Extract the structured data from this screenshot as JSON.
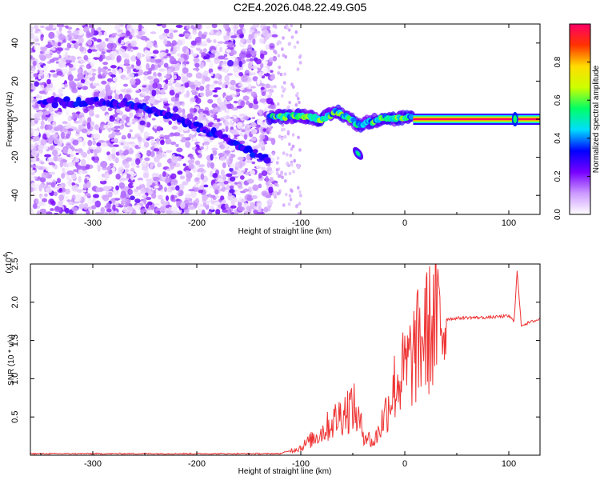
{
  "figure": {
    "title": "C2E4.2026.048.22.49.G05"
  },
  "chart_data": [
    {
      "id": "spectrogram",
      "type": "heatmap",
      "title": "C2E4.2026.048.22.49.G05",
      "xlabel": "Height of straight line (km)",
      "ylabel": "Frequency (Hz)",
      "xlim": [
        -360,
        130
      ],
      "ylim": [
        -50,
        50
      ],
      "xticks": [
        -300,
        -200,
        -100,
        0,
        100
      ],
      "yticks": [
        -40,
        -20,
        0,
        20,
        40
      ],
      "colorbar": {
        "label": "Normalized spectral amplitude",
        "range": [
          0,
          1
        ],
        "ticks": [
          "0.0",
          "0.2",
          "0.4",
          "0.6",
          "0.8"
        ],
        "colormap": [
          "#ffffff",
          "#cc99ff",
          "#7700ff",
          "#0000ff",
          "#00ddff",
          "#00ff66",
          "#ccff00",
          "#ffdd00",
          "#ff3300",
          "#ff0066"
        ]
      },
      "features": {
        "noise_region_x": [
          -360,
          -125
        ],
        "noise_amplitude": 0.2,
        "drifting_trace": [
          {
            "x": -350,
            "y": 9
          },
          {
            "x": -300,
            "y": 9
          },
          {
            "x": -260,
            "y": 8
          },
          {
            "x": -220,
            "y": 0
          },
          {
            "x": -180,
            "y": -8
          },
          {
            "x": -130,
            "y": -22
          }
        ],
        "carrier": {
          "points": [
            {
              "x": -130,
              "y": 1
            },
            {
              "x": -100,
              "y": 2
            },
            {
              "x": -80,
              "y": 0
            },
            {
              "x": -65,
              "y": 4
            },
            {
              "x": -55,
              "y": 1
            },
            {
              "x": -45,
              "y": -3
            },
            {
              "x": -30,
              "y": -1
            },
            {
              "x": -20,
              "y": 1
            },
            {
              "x": -10,
              "y": 0
            },
            {
              "x": 0,
              "y": 1
            },
            {
              "x": 10,
              "y": 0
            },
            {
              "x": 130,
              "y": 0
            }
          ],
          "stable_from_x": 8,
          "amplitude": 1.0
        },
        "spot": {
          "x": -45,
          "y": -18
        }
      }
    },
    {
      "id": "snr",
      "type": "line",
      "xlabel": "Height of straight line (km)",
      "ylabel": "SNR (10 * v/v)",
      "yscale_label": "(x10",
      "yscale_exponent": "4",
      "xlim": [
        -360,
        130
      ],
      "ylim": [
        0,
        2.5
      ],
      "xticks": [
        -300,
        -200,
        -100,
        0,
        100
      ],
      "yticks": [
        "0.5",
        "1.0",
        "1.5",
        "2.0",
        "2.5"
      ],
      "ytick_values": [
        0.5,
        1.0,
        1.5,
        2.0,
        2.5
      ],
      "color": "#ee3333",
      "series": [
        {
          "x": [
            -360,
            -120,
            -100,
            -80,
            -60,
            -50,
            -40,
            -30,
            -20,
            -10,
            0,
            10,
            20,
            30,
            40,
            60,
            80,
            100,
            105,
            108,
            112,
            130
          ],
          "y": [
            0.02,
            0.02,
            0.1,
            0.3,
            0.55,
            0.65,
            0.3,
            0.15,
            0.5,
            0.9,
            1.1,
            1.35,
            1.6,
            1.72,
            1.78,
            1.8,
            1.8,
            1.82,
            1.75,
            2.4,
            1.7,
            1.78
          ]
        }
      ]
    }
  ]
}
